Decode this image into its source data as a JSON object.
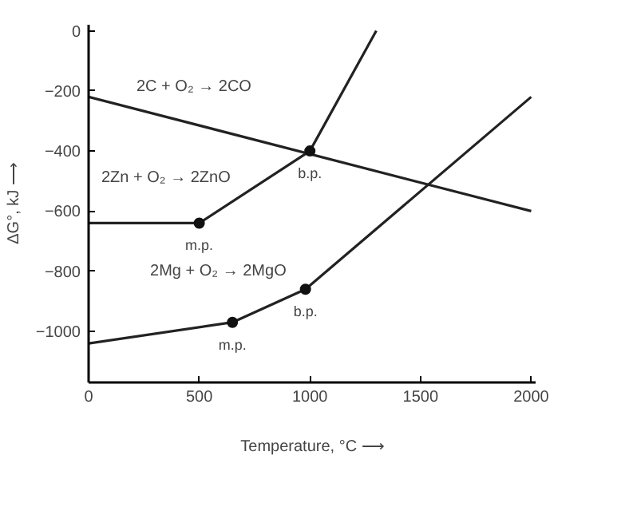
{
  "chart_data": {
    "type": "line",
    "xlabel": "Temperature, °C ⟶",
    "ylabel": "ΔG°, kJ ⟶",
    "xlim": [
      0,
      2020
    ],
    "ylim": [
      -1170,
      20
    ],
    "xticks": [
      0,
      500,
      1000,
      1500,
      2000
    ],
    "yticks": [
      0,
      -200,
      -400,
      -600,
      -800,
      -1000
    ],
    "grid": false,
    "marker": "none",
    "line_style": "solid",
    "series": [
      {
        "name": "2C + O₂ → 2CO",
        "color": "#222222",
        "x": [
          0,
          2000
        ],
        "values": [
          -220,
          -600
        ]
      },
      {
        "name": "2Zn + O₂ → 2ZnO",
        "color": "#222222",
        "x": [
          0,
          500,
          1000,
          1300
        ],
        "values": [
          -640,
          -640,
          -400,
          0
        ]
      },
      {
        "name": "2Mg + O₂ → 2MgO",
        "color": "#222222",
        "x": [
          0,
          650,
          980,
          2000
        ],
        "values": [
          -1040,
          -970,
          -860,
          -220
        ]
      },
      {
        "type": "scatter",
        "marker": "circle",
        "color": "#111111",
        "x": [
          500,
          1000,
          650,
          980
        ],
        "values": [
          -640,
          -400,
          -970,
          -860
        ]
      }
    ],
    "annotations": [
      {
        "text": "m.p.",
        "x": 500,
        "y": -640
      },
      {
        "text": "b.p.",
        "x": 1000,
        "y": -400
      },
      {
        "text": "m.p.",
        "x": 650,
        "y": -970
      },
      {
        "text": "b.p.",
        "x": 980,
        "y": -860
      }
    ]
  }
}
